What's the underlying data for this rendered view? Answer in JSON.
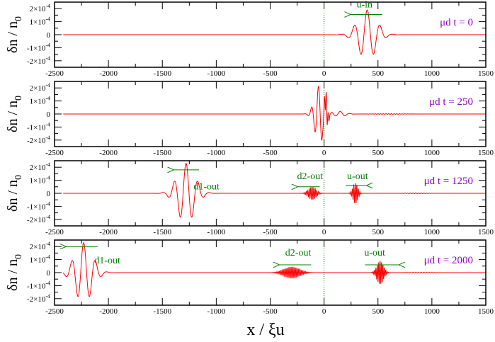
{
  "chart_data": {
    "type": "line",
    "xlabel": "x / ξu",
    "xlabel_main": "x / ξ",
    "xlabel_sub": "u",
    "ylabel_main": "δn / n",
    "ylabel_sub": "0",
    "xlim": [
      -2500,
      1500
    ],
    "ylim": [
      -0.00025,
      0.00025
    ],
    "xticks": [
      -2500,
      -2000,
      -1500,
      -1000,
      -500,
      0,
      500,
      1000,
      1500
    ],
    "yticks": [
      {
        "value": 0.0002,
        "mant": "2×10",
        "exp": "-4"
      },
      {
        "value": 0.0001,
        "mant": "1×10",
        "exp": "-4"
      },
      {
        "value": 0,
        "mant": "0",
        "exp": ""
      },
      {
        "value": -0.0001,
        "mant": "-1×10",
        "exp": "-4"
      },
      {
        "value": -0.0002,
        "mant": "-2×10",
        "exp": "-4"
      }
    ],
    "line_color": "#ff0000",
    "annotation_color": "#008000",
    "time_color": "#9400d3",
    "reference_line_x": 0,
    "panels": [
      {
        "time_label": "μd t = 0",
        "time_mu": "μ",
        "time_sub": "d",
        "time_rest": " t = 0",
        "packets": [
          {
            "center": 400,
            "sigma": 85,
            "amplitude": 0.00019,
            "wavelength": 120,
            "phase": 0
          }
        ],
        "annotations": [
          {
            "text": "u-in",
            "x": 375,
            "y": 0.00021,
            "arrow_from": 540,
            "arrow_to": 240,
            "arrow_y": 0.000155
          }
        ]
      },
      {
        "time_label": "μd t = 250",
        "time_mu": "μ",
        "time_sub": "d",
        "time_rest": " t = 250",
        "packets": [
          {
            "center": -40,
            "sigma": 45,
            "amplitude": 0.00022,
            "wavelength": 65,
            "phase": 1.2
          },
          {
            "center": 20,
            "sigma": 15,
            "amplitude": 0.0001,
            "wavelength": 18,
            "phase": 0
          },
          {
            "center": 150,
            "sigma": 50,
            "amplitude": 2e-05,
            "wavelength": 90,
            "phase": 0
          },
          {
            "center": 600,
            "sigma": 120,
            "amplitude": 2.5e-06,
            "wavelength": 25,
            "phase": 0
          }
        ],
        "annotations": []
      },
      {
        "time_label": "μd t = 1250",
        "time_mu": "μ",
        "time_sub": "d",
        "time_rest": " t = 1250",
        "packets": [
          {
            "center": -1280,
            "sigma": 80,
            "amplitude": 0.00023,
            "wavelength": 110,
            "phase": 0
          },
          {
            "center": -110,
            "sigma": 35,
            "amplitude": 5e-05,
            "wavelength": 14,
            "phase": 0
          },
          {
            "center": 290,
            "sigma": 22,
            "amplitude": 8e-05,
            "wavelength": 14,
            "phase": 0
          },
          {
            "center": 850,
            "sigma": 100,
            "amplitude": 3e-06,
            "wavelength": 25,
            "phase": 0
          }
        ],
        "annotations": [
          {
            "text": "d1-out",
            "x": -1090,
            "y": 3e-05,
            "arrow_from": -1160,
            "arrow_to": -1400,
            "arrow_y": 0.00018
          },
          {
            "text": "d2-out",
            "x": -130,
            "y": 0.00011,
            "arrow_from": -40,
            "arrow_to": -250,
            "arrow_y": 5e-05
          },
          {
            "text": "u-out",
            "x": 310,
            "y": 0.00011,
            "arrow_from": 200,
            "arrow_to": 400,
            "arrow_y": 6e-05
          }
        ]
      },
      {
        "time_label": "μd t = 2000",
        "time_mu": "μ",
        "time_sub": "d",
        "time_rest": " t = 2000",
        "packets": [
          {
            "center": -2230,
            "sigma": 80,
            "amplitude": 0.00023,
            "wavelength": 110,
            "phase": 0
          },
          {
            "center": -300,
            "sigma": 70,
            "amplitude": 4.5e-05,
            "wavelength": 13,
            "phase": 0
          },
          {
            "center": 520,
            "sigma": 30,
            "amplitude": 9e-05,
            "wavelength": 13,
            "phase": 0
          },
          {
            "center": 900,
            "sigma": 120,
            "amplitude": 3e-06,
            "wavelength": 25,
            "phase": 0
          }
        ],
        "annotations": [
          {
            "text": "d1-out",
            "x": -2010,
            "y": 7e-05,
            "arrow_from": -2100,
            "arrow_to": -2400,
            "arrow_y": 0.0002
          },
          {
            "text": "d2-out",
            "x": -240,
            "y": 0.00013,
            "arrow_from": -120,
            "arrow_to": -420,
            "arrow_y": 6e-05
          },
          {
            "text": "u-out",
            "x": 470,
            "y": 0.00013,
            "arrow_from": 380,
            "arrow_to": 700,
            "arrow_y": 6e-05
          }
        ]
      }
    ]
  }
}
